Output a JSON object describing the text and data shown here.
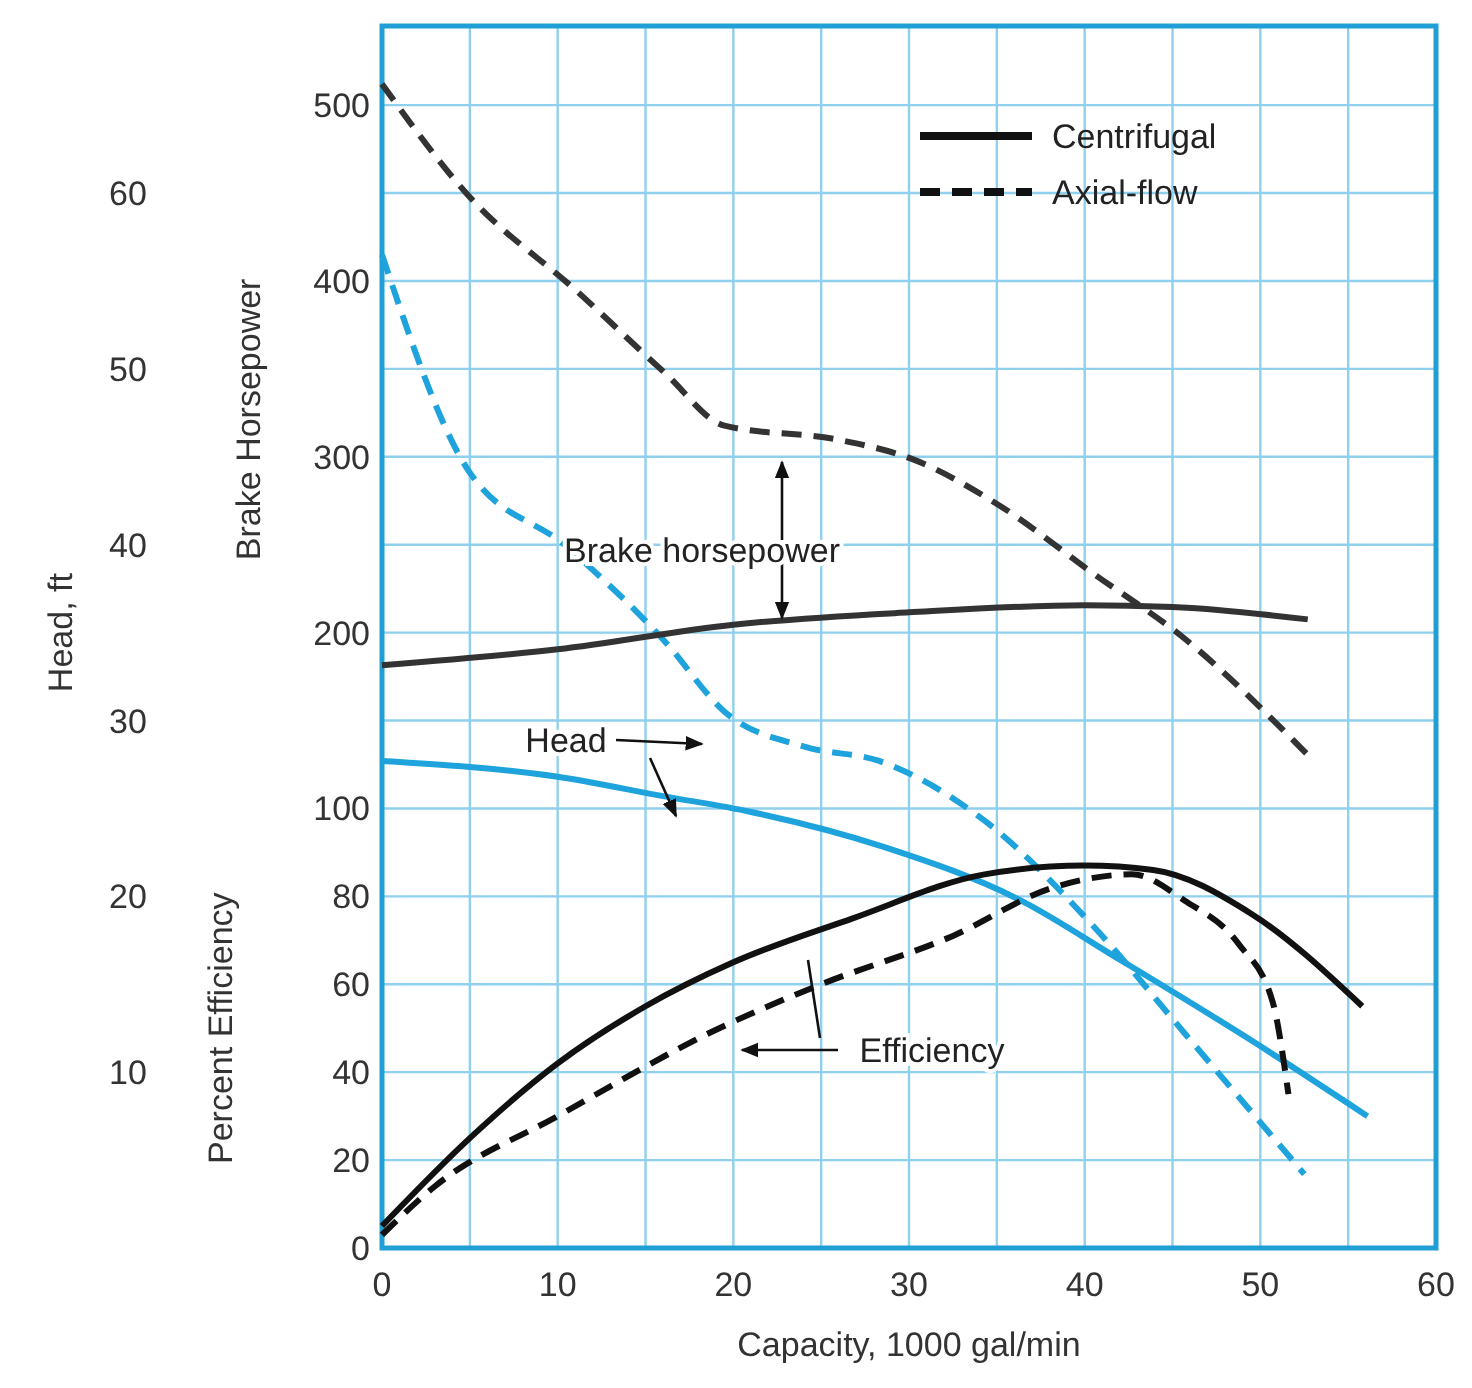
{
  "chart_data": {
    "type": "line",
    "xlabel": "Capacity, 1000 gal/min",
    "ylabel": "Head, ft",
    "y2label": "Brake Horsepower",
    "y3label": "Percent Efficiency",
    "xlim": [
      0,
      60
    ],
    "xticks": [
      0,
      {
        "value": 5,
        "label": null
      },
      10,
      {
        "value": 15,
        "label": null
      },
      20,
      {
        "value": 25,
        "label": null
      },
      30,
      {
        "value": 35,
        "label": null
      },
      40,
      {
        "value": 45,
        "label": null
      },
      50,
      {
        "value": 55,
        "label": null
      },
      60
    ],
    "ylim": [
      0,
      69.5
    ],
    "yticks": [
      {
        "value": 5,
        "label": null
      },
      10,
      {
        "value": 15,
        "label": null
      },
      20,
      {
        "value": 25,
        "label": null
      },
      30,
      {
        "value": 35,
        "label": null
      },
      40,
      {
        "value": 45,
        "label": null
      },
      50,
      {
        "value": 55,
        "label": null
      },
      60,
      {
        "value": 65,
        "label": null
      }
    ],
    "y2lim": [
      -149,
      545
    ],
    "y2ticks": [
      200,
      300,
      400,
      500
    ],
    "y3lim": [
      0,
      278
    ],
    "y3ticks": [
      0,
      20,
      40,
      60,
      80,
      100
    ],
    "grid": true,
    "legend": "top right",
    "series": [
      {
        "color": "#1fa3dc",
        "line_style": "solid",
        "x": [
          0,
          10,
          16,
          21,
          28.6,
          36.3,
          42,
          49.5,
          56.1
        ],
        "values": [
          27.7,
          26.8,
          25.7,
          24.8,
          22.8,
          19.8,
          16.4,
          11.8,
          7.5
        ]
      },
      {
        "color": "#1fa3dc",
        "line_style": "dashed",
        "x": [
          0,
          4.8,
          10.5,
          16.1,
          19.5,
          24.1,
          28.3,
          34.3,
          40.5,
          45.7,
          52.5
        ],
        "values": [
          56.5,
          44.4,
          39.9,
          34.5,
          30.5,
          28.5,
          27.7,
          24.3,
          18.3,
          12.2,
          4.2
        ]
      },
      {
        "axis": "y2",
        "color": "#333333",
        "line_style": "solid",
        "x": [
          0,
          10,
          20,
          30,
          40,
          45,
          52.7
        ],
        "values": [
          182,
          191,
          205,
          212,
          216,
          215,
          208
        ]
      },
      {
        "axis": "y2",
        "color": "#333333",
        "line_style": "dashed",
        "x": [
          0,
          4.8,
          11.25,
          16.1,
          19.5,
          26,
          30.2,
          35.1,
          40.5,
          45.7,
          52.7
        ],
        "values": [
          512,
          450,
          393,
          348,
          318,
          310,
          299,
          273,
          234,
          197,
          131
        ]
      },
      {
        "axis": "y3",
        "name": "Centrifugal",
        "color": "#111111",
        "line_style": "solid",
        "x": [
          0,
          5,
          10,
          15,
          20,
          26.8,
          34.3,
          40,
          43.9,
          49.5,
          55.8
        ],
        "values": [
          5,
          25,
          42,
          55,
          65,
          75,
          85,
          87,
          86,
          76,
          55
        ]
      },
      {
        "axis": "y3",
        "name": "Axial-flow",
        "color": "#111111",
        "line_style": "dashed",
        "x": [
          0,
          3,
          10,
          19.2,
          25,
          32.5,
          38.2,
          42.7,
          45.7,
          48.8,
          50.7,
          51.6
        ],
        "values": [
          3,
          14,
          30,
          50,
          60,
          71,
          82,
          85,
          79,
          69,
          56,
          35
        ]
      }
    ],
    "annotations": [
      "Brake horsepower",
      "Head",
      "Efficiency"
    ]
  }
}
